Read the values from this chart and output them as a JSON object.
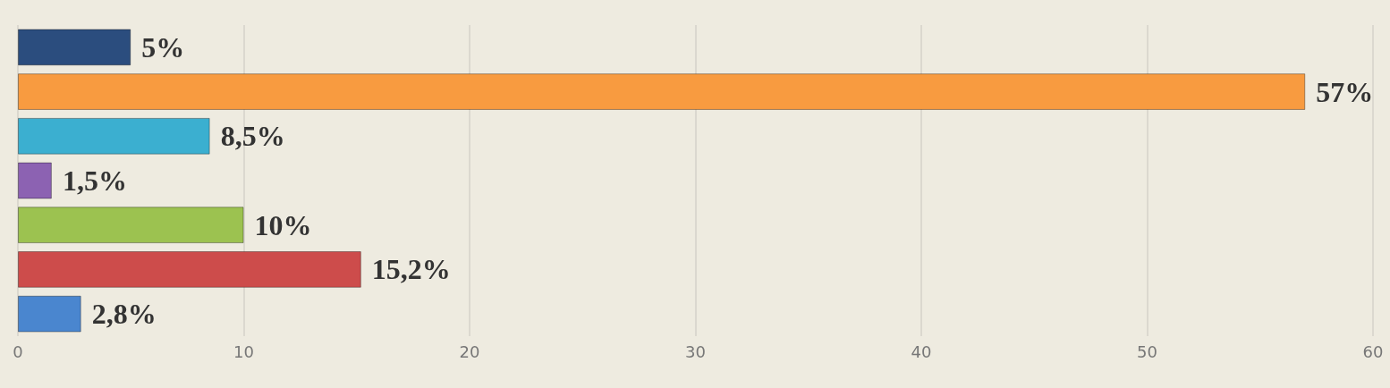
{
  "chart_data": {
    "type": "bar",
    "orientation": "horizontal",
    "categories": [
      null,
      null,
      null,
      null,
      null,
      null,
      null
    ],
    "values": [
      5,
      57,
      8.5,
      1.5,
      10,
      15.2,
      2.8
    ],
    "value_labels": [
      "5%",
      "57%",
      "8,5%",
      "1,5%",
      "10%",
      "15,2%",
      "2,8%"
    ],
    "colors": [
      "#2b4d7e",
      "#f89b40",
      "#3bafd0",
      "#8c62b2",
      "#9cc250",
      "#cd4c4b",
      "#4a86cf"
    ],
    "xlim": [
      0,
      60
    ],
    "xticks": [
      0,
      10,
      20,
      30,
      40,
      50,
      60
    ],
    "grid": "x"
  }
}
